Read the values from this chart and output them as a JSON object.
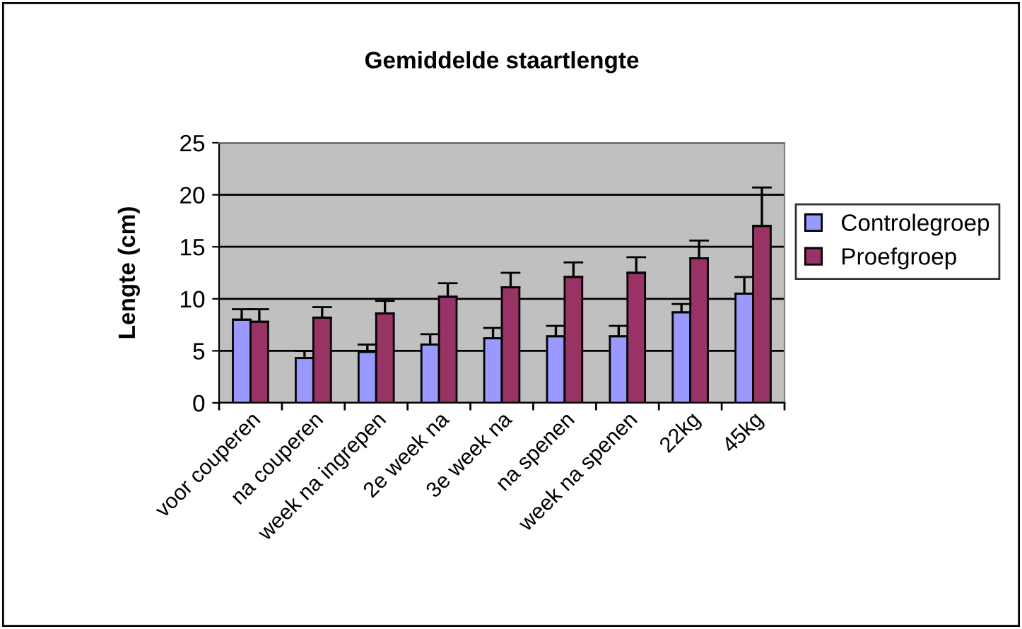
{
  "chart_data": {
    "type": "bar",
    "title": "Gemiddelde staartlengte",
    "ylabel": "Lengte (cm)",
    "categories": [
      "voor couperen",
      "na couperen",
      "week na ingrepen",
      "2e week na",
      "3e week na",
      "na spenen",
      "week na spenen",
      "22kg",
      "45kg"
    ],
    "series": [
      {
        "name": "Controlegroep",
        "color": "#9999ff",
        "values": [
          8.0,
          4.3,
          4.9,
          5.6,
          6.2,
          6.4,
          6.4,
          8.7,
          10.5
        ],
        "errors": [
          [
            8.0,
            9.0
          ],
          [
            4.3,
            5.0
          ],
          [
            4.9,
            5.6
          ],
          [
            5.6,
            6.6
          ],
          [
            6.2,
            7.2
          ],
          [
            6.4,
            7.4
          ],
          [
            6.4,
            7.4
          ],
          [
            8.7,
            9.5
          ],
          [
            10.5,
            12.1
          ]
        ]
      },
      {
        "name": "Proefgroep",
        "color": "#993366",
        "values": [
          7.8,
          8.2,
          8.6,
          10.2,
          11.1,
          12.1,
          12.5,
          13.9,
          17.0
        ],
        "errors": [
          [
            7.8,
            9.0
          ],
          [
            8.2,
            9.2
          ],
          [
            8.6,
            9.8
          ],
          [
            10.2,
            11.5
          ],
          [
            11.1,
            12.5
          ],
          [
            12.1,
            13.5
          ],
          [
            12.5,
            14.0
          ],
          [
            13.9,
            15.6
          ],
          [
            17.0,
            20.7
          ]
        ]
      }
    ],
    "ylim": [
      0,
      25
    ],
    "yticks": [
      0,
      5,
      10,
      15,
      20,
      25
    ],
    "grid": "y",
    "legend": "right"
  }
}
